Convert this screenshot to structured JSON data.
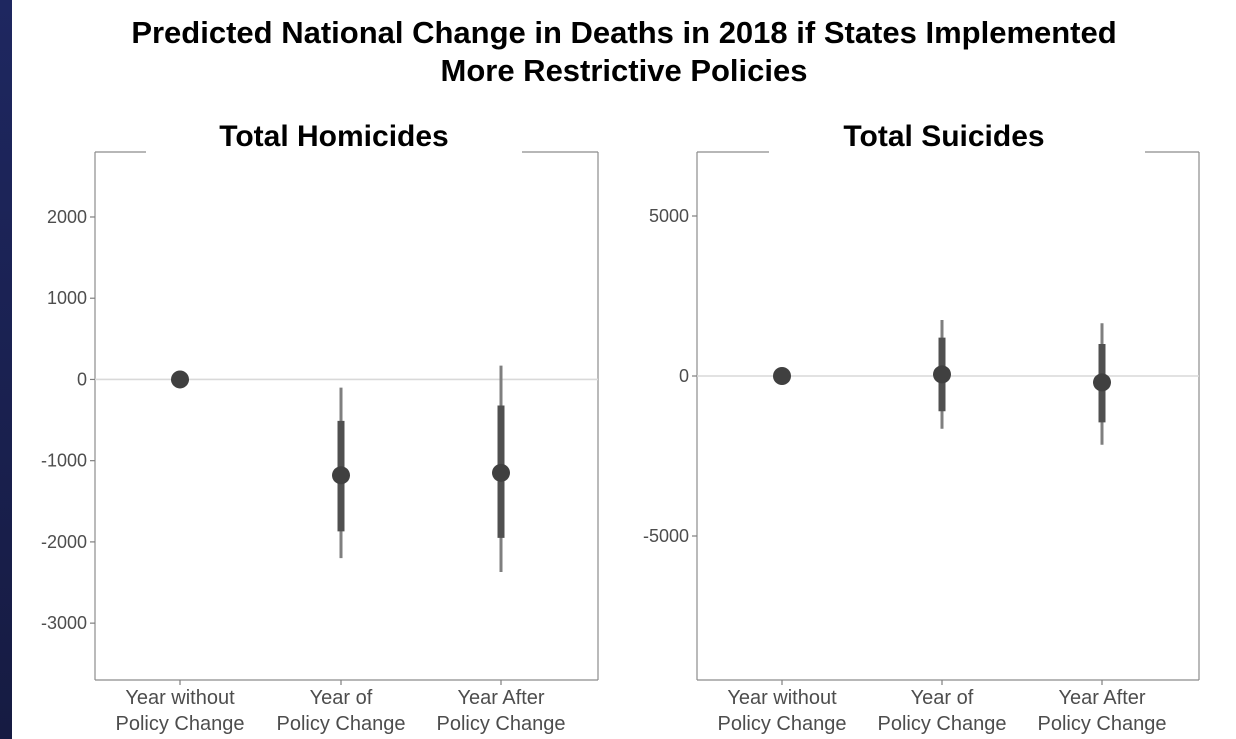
{
  "page_title_lines": [
    "Predicted National Change in Deaths in 2018 if States Implemented",
    "More Restrictive Policies"
  ],
  "colors": {
    "mark": "#404040",
    "inner_interval": "#505050",
    "outer_interval": "#7f7f7f",
    "zero_line": "#d9d9d9",
    "panel_border": "#8c8c8c",
    "background": "#ffffff"
  },
  "chart_data": [
    {
      "type": "scatter",
      "title": "Total Homicides",
      "xlabel": "",
      "ylabel": "",
      "categories": [
        "Year without Policy Change",
        "Year of Policy Change",
        "Year After Policy Change"
      ],
      "category_label_lines": [
        [
          "Year without",
          "Policy Change"
        ],
        [
          "Year of",
          "Policy Change"
        ],
        [
          "Year After",
          "Policy Change"
        ]
      ],
      "yticks": [
        2000,
        1000,
        0,
        -1000,
        -2000,
        -3000
      ],
      "ylim": [
        -3700,
        2800
      ],
      "zero_line": true,
      "grid": false,
      "points": [
        {
          "category": "Year without Policy Change",
          "estimate": 0
        },
        {
          "category": "Year of Policy Change",
          "estimate": -1180,
          "inner": [
            -1870,
            -510
          ],
          "outer": [
            -2200,
            -100
          ]
        },
        {
          "category": "Year After Policy Change",
          "estimate": -1150,
          "inner": [
            -1950,
            -320
          ],
          "outer": [
            -2370,
            170
          ]
        }
      ]
    },
    {
      "type": "scatter",
      "title": "Total Suicides",
      "xlabel": "",
      "ylabel": "",
      "categories": [
        "Year without Policy Change",
        "Year of Policy Change",
        "Year After Policy Change"
      ],
      "category_label_lines": [
        [
          "Year without",
          "Policy Change"
        ],
        [
          "Year of",
          "Policy Change"
        ],
        [
          "Year After",
          "Policy Change"
        ]
      ],
      "yticks": [
        5000,
        0,
        -5000
      ],
      "ylim": [
        -9500,
        7000
      ],
      "zero_line": true,
      "grid": false,
      "points": [
        {
          "category": "Year without Policy Change",
          "estimate": 0
        },
        {
          "category": "Year of Policy Change",
          "estimate": 50,
          "inner": [
            -1100,
            1200
          ],
          "outer": [
            -1650,
            1750
          ]
        },
        {
          "category": "Year After Policy Change",
          "estimate": -200,
          "inner": [
            -1450,
            1000
          ],
          "outer": [
            -2150,
            1650
          ]
        }
      ]
    }
  ]
}
